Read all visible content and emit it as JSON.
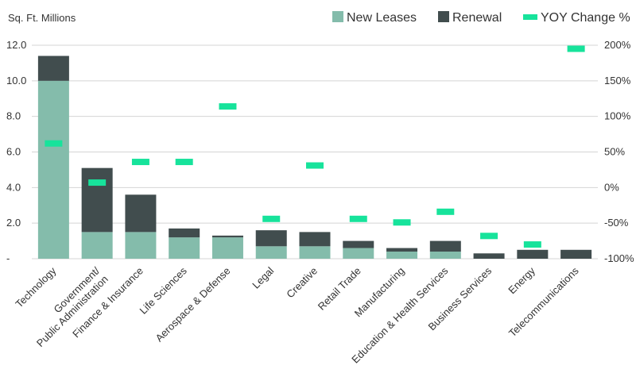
{
  "chart_data": {
    "type": "bar",
    "stacked": true,
    "ylabel": "Sq. Ft. Millions",
    "y_ticks": [
      "-",
      "2.0",
      "4.0",
      "6.0",
      "8.0",
      "10.0",
      "12.0"
    ],
    "ylim": [
      0,
      12
    ],
    "y2_ticks": [
      "-100%",
      "-50%",
      "0%",
      "50%",
      "100%",
      "150%",
      "200%"
    ],
    "y2lim": [
      -100,
      200
    ],
    "grid": true,
    "legend_position": "top-right",
    "categories": [
      [
        "Technology"
      ],
      [
        "Government/",
        "Public Administration"
      ],
      [
        "Finance & Insurance"
      ],
      [
        "Life Sciences"
      ],
      [
        "Aerospace & Defense"
      ],
      [
        "Legal"
      ],
      [
        "Creative"
      ],
      [
        "Retail Trade"
      ],
      [
        "Manufacturing"
      ],
      [
        "Education & Health Services"
      ],
      [
        "Business Services"
      ],
      [
        "Energy"
      ],
      [
        "Telecommunications"
      ]
    ],
    "series": [
      {
        "name": "New Leases",
        "kind": "bar",
        "axis": "left",
        "color": "#84bcab",
        "values": [
          10.0,
          1.5,
          1.5,
          1.2,
          1.2,
          0.7,
          0.7,
          0.6,
          0.4,
          0.4,
          0.0,
          0.0,
          0.0
        ]
      },
      {
        "name": "Renewal",
        "kind": "bar",
        "axis": "left",
        "color": "#414d4e",
        "values": [
          1.4,
          3.6,
          2.1,
          0.5,
          0.1,
          0.9,
          0.8,
          0.4,
          0.2,
          0.6,
          0.3,
          0.5,
          0.5
        ]
      },
      {
        "name": "YOY Change %",
        "kind": "marker",
        "axis": "right",
        "color": "#17e39b",
        "values": [
          62,
          7,
          36,
          36,
          114,
          -44,
          31,
          -44,
          -49,
          -34,
          -68,
          -80,
          195
        ]
      }
    ]
  }
}
